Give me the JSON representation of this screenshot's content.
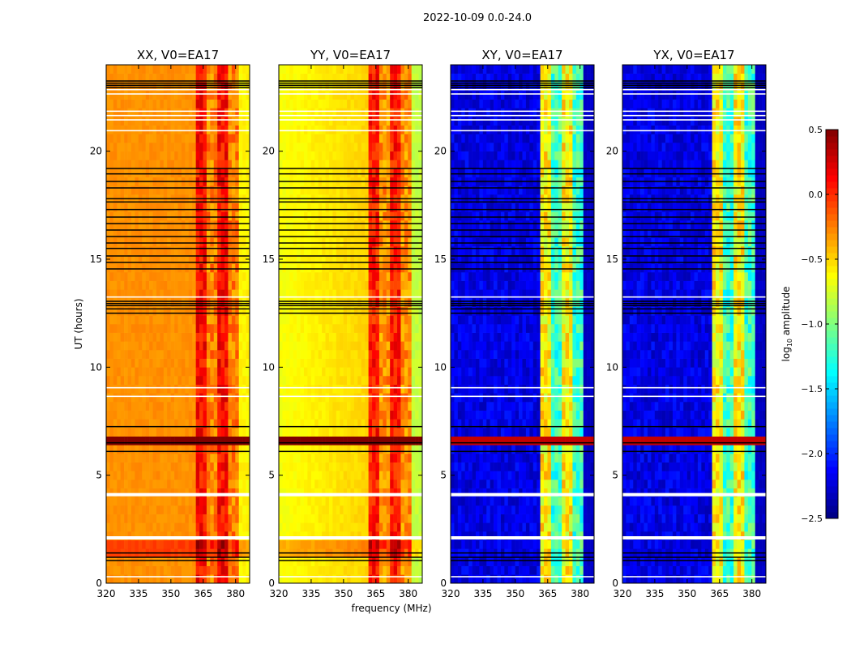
{
  "chart_data": {
    "type": "heatmap",
    "title": "2022-10-09 0.0-24.0",
    "xlabel": "frequency (MHz)",
    "ylabel": "UT (hours)",
    "xlim": [
      320,
      386.5
    ],
    "ylim": [
      0,
      24
    ],
    "xticks": [
      320,
      335,
      350,
      365,
      380
    ],
    "yticks": [
      0,
      5,
      10,
      15,
      20
    ],
    "panels": [
      {
        "title": "XX, V0=EA17",
        "pol": "XX",
        "base_level": -0.3,
        "band_level": 0.1,
        "edge_level": -0.6
      },
      {
        "title": "YY, V0=EA17",
        "pol": "YY",
        "base_level": -0.65,
        "band_level": 0.05,
        "edge_level": -0.8
      },
      {
        "title": "XY, V0=EA17",
        "pol": "XY",
        "base_level": -2.2,
        "band_level": -0.8,
        "edge_level": -2.3
      },
      {
        "title": "YX, V0=EA17",
        "pol": "YX",
        "base_level": -2.2,
        "band_level": -0.8,
        "edge_level": -2.3
      }
    ],
    "rfi_band_mhz": [
      362,
      381
    ],
    "strong_event_hours": [
      6.6,
      7.0
    ],
    "flagged_black_hours": [
      23.25,
      23.15,
      23.05,
      22.95,
      19.2,
      18.95,
      18.6,
      18.3,
      17.8,
      17.65,
      17.3,
      16.95,
      16.65,
      16.35,
      16.05,
      15.75,
      15.5,
      15.15,
      14.85,
      14.55,
      13.05,
      12.95,
      12.85,
      12.7,
      12.5,
      7.25,
      6.5,
      6.1,
      1.4,
      1.2,
      1.05
    ],
    "flagged_white_hours": [
      22.85,
      22.65,
      21.85,
      21.65,
      21.45,
      20.95,
      13.25,
      9.05,
      8.65,
      4.1,
      2.1,
      0.3
    ],
    "colorbar": {
      "label": "log10 amplitude",
      "label_main": "log",
      "label_sub": "10",
      "label_rest": " amplitude",
      "range": [
        -2.5,
        0.5
      ],
      "ticks": [
        "0.5",
        "0.0",
        "−0.5",
        "−1.0",
        "−1.5",
        "−2.0",
        "−2.5"
      ],
      "tick_values": [
        0.5,
        0.0,
        -0.5,
        -1.0,
        -1.5,
        -2.0,
        -2.5
      ],
      "colormap": "jet"
    }
  }
}
